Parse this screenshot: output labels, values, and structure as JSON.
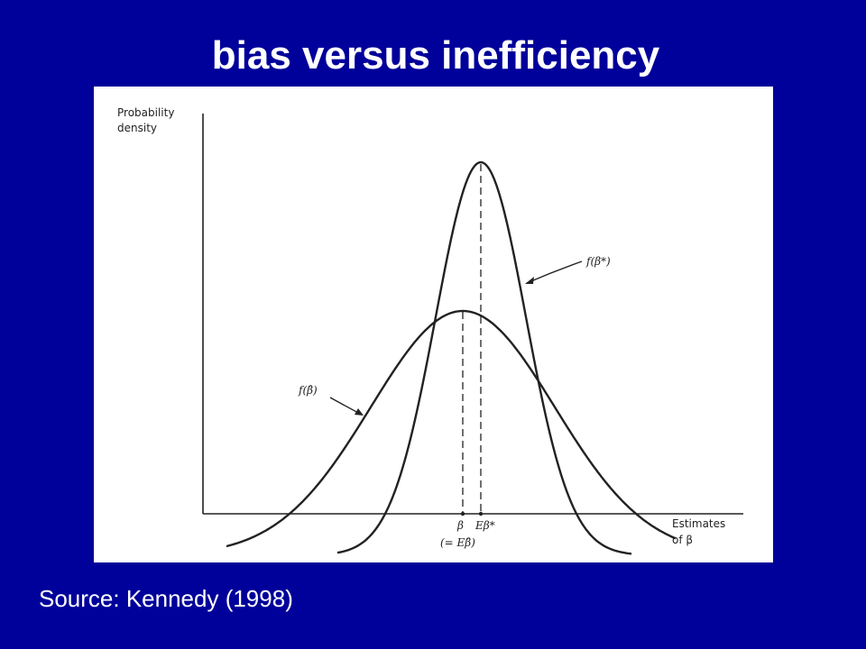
{
  "slide": {
    "title": "bias versus inefficiency",
    "source": "Source: Kennedy (1998)"
  },
  "colors": {
    "background": "#00009a",
    "text": "#ffffff",
    "panel": "#ffffff",
    "ink": "#222222"
  },
  "diagram": {
    "y_axis_label": [
      "Probability",
      "density"
    ],
    "x_axis_label": [
      "Estimates",
      "of β"
    ],
    "curve_biased_label": "f(β*)",
    "curve_unbiased_label": "f(β̂)",
    "tick_beta": "β",
    "tick_beta_note": "(= Eβ̂)",
    "tick_expected": "Eβ*"
  }
}
